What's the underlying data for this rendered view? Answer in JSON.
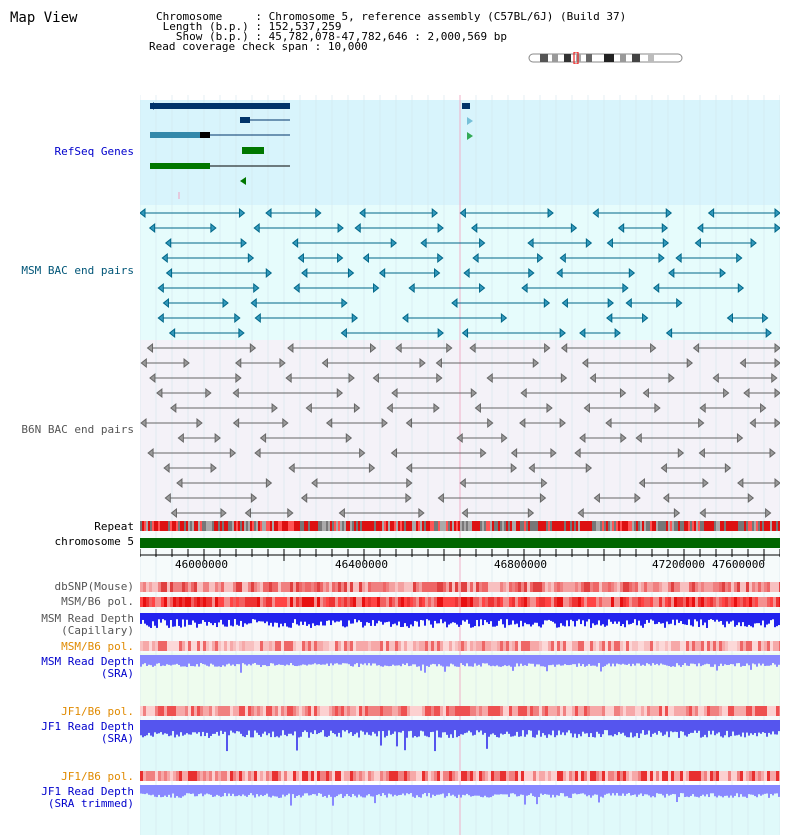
{
  "title": "Map View",
  "header": {
    "chromosome_key": "Chromosome",
    "chromosome_val": "Chromosome 5, reference assembly (C57BL/6J) (Build 37)",
    "length_key": "Length (b.p.)",
    "length_val": "152,537,259",
    "show_key": "Show (b.p.)",
    "show_val": "45,782,078-47,782,646 : 2,000,569 bp",
    "coverage_key": "Read coverage check span",
    "coverage_val": "10,000"
  },
  "tracks": {
    "refseq": "RefSeq Genes",
    "msm_bac": "MSM BAC end pairs",
    "b6n_bac": "B6N BAC end pairs",
    "repeat": "Repeat",
    "chromosome": "chromosome 5",
    "dbsnp": "dbSNP(Mouse)",
    "msm_b6_pol": "MSM/B6 pol.",
    "msm_depth_cap_1": "MSM Read Depth",
    "msm_depth_cap_2": "(Capillary)",
    "msm_b6_pol2": "MSM/B6 pol.",
    "msm_depth_sra_1": "MSM Read Depth",
    "msm_depth_sra_2": "(SRA)",
    "jf1_b6_pol": "JF1/B6 pol.",
    "jf1_depth_sra_1": "JF1 Read Depth",
    "jf1_depth_sra_2": "(SRA)",
    "jf1_b6_pol2": "JF1/B6 pol.",
    "jf1_depth_trim_1": "JF1 Read Depth",
    "jf1_depth_trim_2": "(SRA trimmed)"
  },
  "axis": {
    "ticks": [
      "46000000",
      "46400000",
      "46800000",
      "47200000",
      "47600000"
    ]
  },
  "colors": {
    "refseq_bg": "#d8f4fc",
    "msm_bg": "#e6fcfc",
    "b6n_bg": "#f4f2f8",
    "gene_dark": "#00336a",
    "gene_green": "#007700",
    "msm_line": "#006688",
    "b6n_line": "#666666",
    "chrom_green": "#006600",
    "depth_blue": "#2222ee",
    "depth_light": "#8888ff",
    "jf1_bg": "#e0fafa",
    "msm_sra_bg": "#eefcee"
  }
}
